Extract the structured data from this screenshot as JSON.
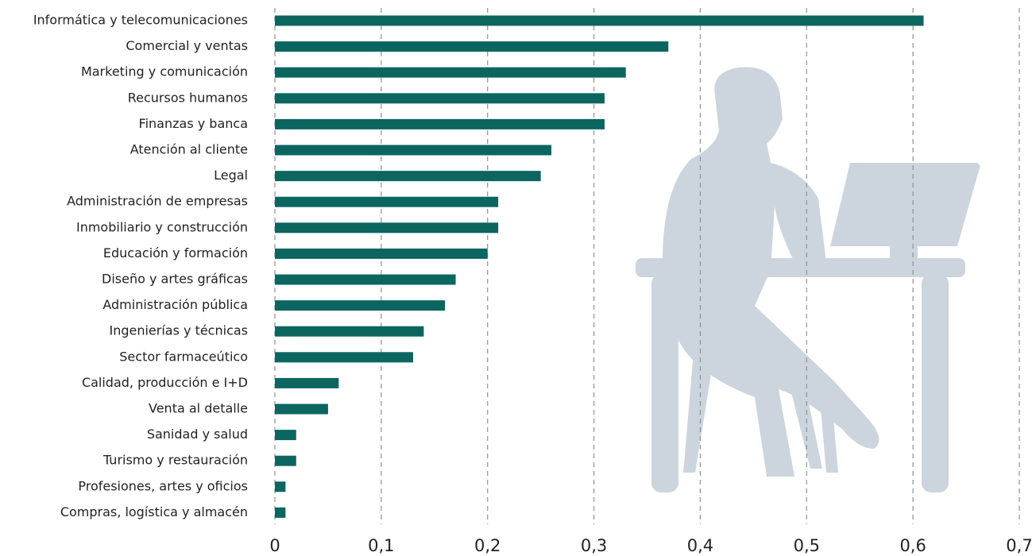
{
  "chart_data": {
    "type": "barh",
    "categories": [
      "Informática y telecomunicaciones",
      "Comercial y ventas",
      "Marketing y comunicación",
      "Recursos humanos",
      "Finanzas y banca",
      "Atención al cliente",
      "Legal",
      "Administración de empresas",
      "Inmobiliario y construcción",
      "Educación y formación",
      "Diseño y artes gráficas",
      "Administración pública",
      "Ingenierías y técnicas",
      "Sector farmaceútico",
      "Calidad, producción e I+D",
      "Venta al detalle",
      "Sanidad y salud",
      "Turismo y restauración",
      "Profesiones, artes y oficios",
      "Compras, logística y almacén"
    ],
    "values": [
      0.61,
      0.37,
      0.33,
      0.31,
      0.31,
      0.26,
      0.25,
      0.21,
      0.21,
      0.2,
      0.17,
      0.16,
      0.14,
      0.13,
      0.06,
      0.05,
      0.02,
      0.02,
      0.01,
      0.01
    ],
    "color": "#0b6660",
    "xlim": [
      0,
      0.7
    ],
    "xticks": [
      0,
      {
        "value": 0.1,
        "label": "0,1"
      },
      {
        "value": 0.2,
        "label": "0,2"
      },
      {
        "value": 0.3,
        "label": "0,3"
      },
      {
        "value": 0.4,
        "label": "0,4"
      },
      {
        "value": 0.5,
        "label": "0,5"
      },
      {
        "value": 0.6,
        "label": "0,6"
      },
      {
        "value": 0.7,
        "label": "0,7"
      }
    ],
    "grid": true
  }
}
